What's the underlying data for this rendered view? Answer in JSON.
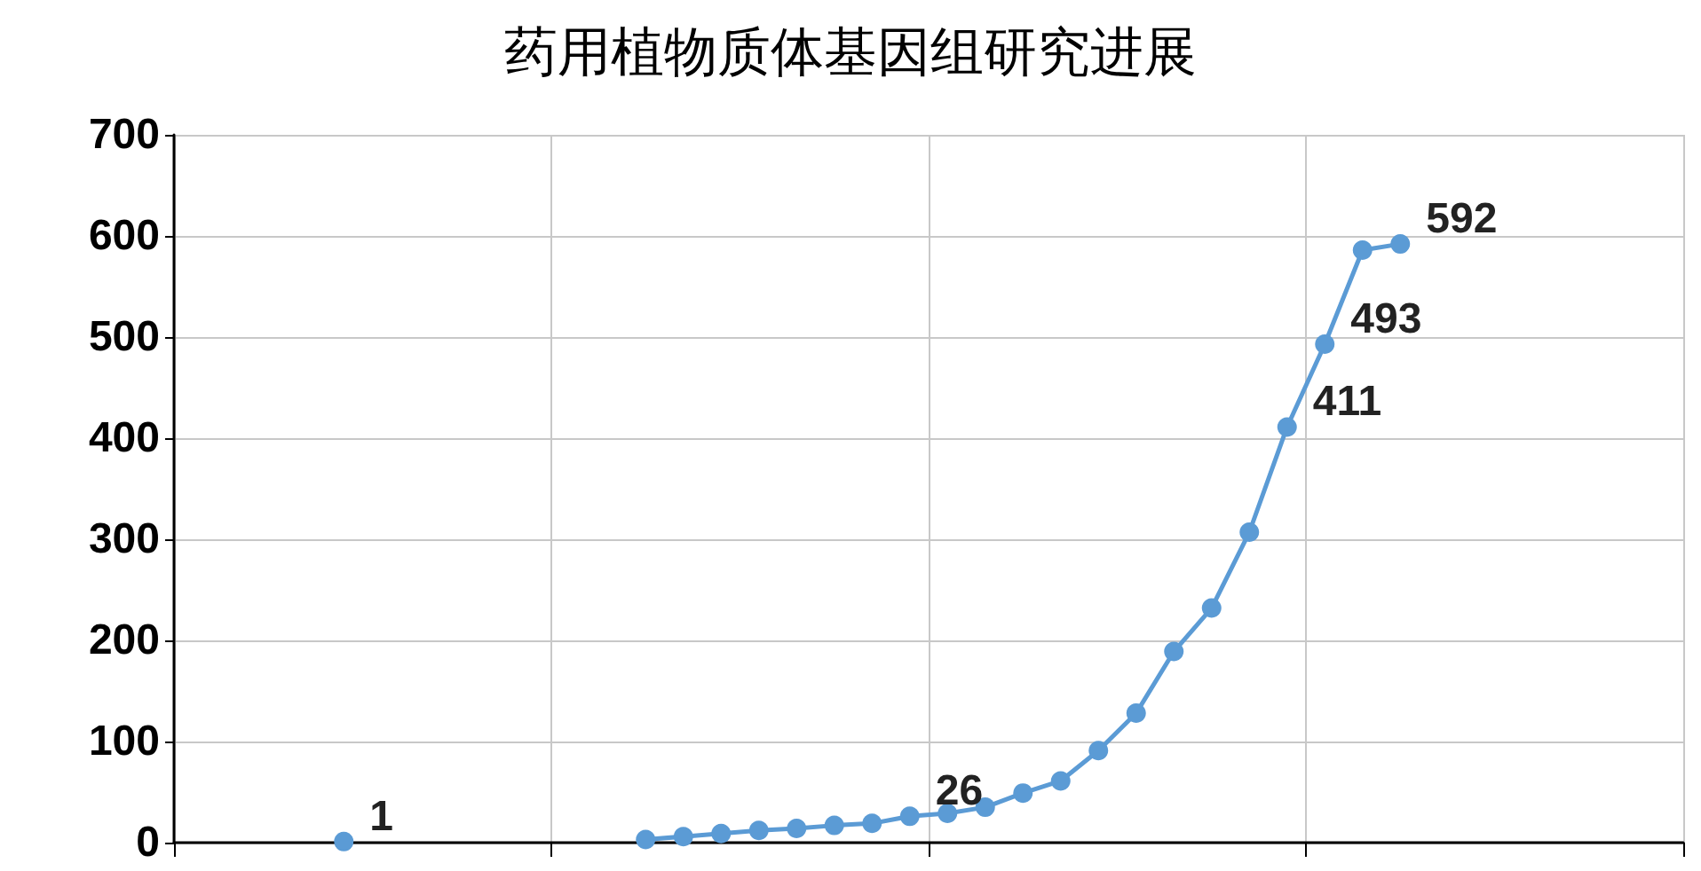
{
  "chart_data": {
    "type": "line",
    "title": "药用植物质体基因组研究进展",
    "categories": [
      null,
      null,
      null,
      null,
      null,
      null,
      null,
      null,
      null,
      null,
      null,
      null,
      null,
      null,
      null,
      null,
      null,
      null,
      null,
      null,
      null,
      null,
      null,
      null,
      null,
      null,
      null,
      null,
      null,
      null,
      null,
      null,
      null,
      null,
      null,
      null,
      null,
      null,
      null,
      null
    ],
    "series": [
      {
        "color": "#5b9bd5",
        "values": [
          null,
          null,
          null,
          null,
          1,
          null,
          null,
          null,
          null,
          null,
          null,
          null,
          3,
          6,
          9,
          12,
          14,
          17,
          19,
          26,
          29,
          35,
          49,
          61,
          91,
          128,
          189,
          232,
          307,
          411,
          493,
          586,
          592,
          null,
          null,
          null,
          null,
          null,
          null,
          null
        ],
        "value_labels": [
          null,
          null,
          null,
          null,
          "1",
          null,
          null,
          null,
          null,
          null,
          null,
          null,
          null,
          null,
          null,
          null,
          null,
          null,
          null,
          "26",
          null,
          null,
          null,
          null,
          null,
          null,
          null,
          null,
          null,
          "411",
          "493",
          null,
          "592",
          null,
          null,
          null,
          null,
          null,
          null,
          null
        ]
      }
    ],
    "ylim": [
      0,
      700
    ],
    "yticks": [
      0,
      100,
      200,
      300,
      400,
      500,
      600,
      700
    ],
    "grid": true,
    "marker": "circle",
    "line_style": "solid",
    "tick_labels": "y"
  }
}
